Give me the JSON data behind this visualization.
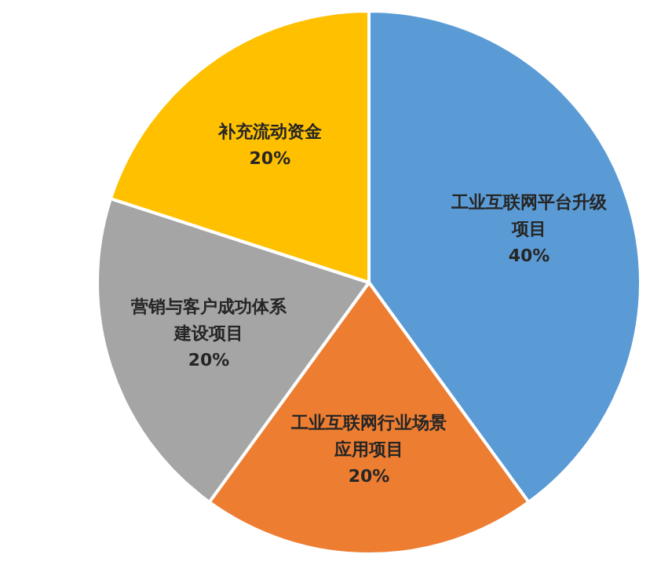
{
  "chart_data": {
    "type": "pie",
    "categories": [
      "工业互联网平台升级项目",
      "工业互联网行业场景应用项目",
      "营销与客户成功体系建设项目",
      "补充流动资金"
    ],
    "values": [
      40,
      20,
      20,
      20
    ],
    "colors": [
      "#5b9bd5",
      "#ed7d31",
      "#a5a5a5",
      "#ffc000"
    ],
    "value_labels": [
      "40%",
      "20%",
      "20%",
      "20%"
    ],
    "legend": false
  }
}
